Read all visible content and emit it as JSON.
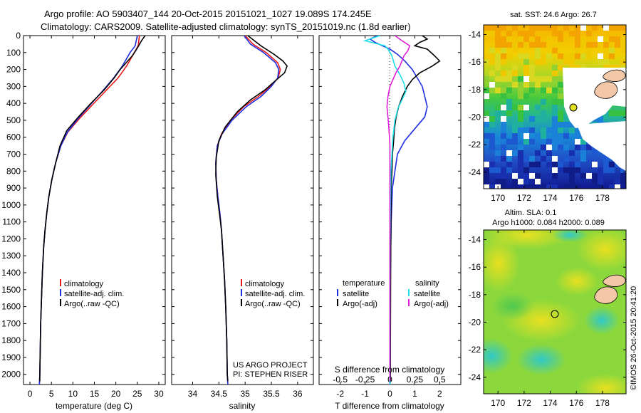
{
  "header": {
    "line1": "Argo profile: AO 5903407_144 20-Oct-2015 20151021_1027 19.089S 174.245E",
    "line2": "Climatology: CARS2009. Satellite-adjusted climatology: synTS_20151019.nc (1.8d earlier)"
  },
  "colors": {
    "climatology": "#e8191a",
    "satellite": "#1f2ee0",
    "argo": "#000000",
    "sal_satellite": "#1fe0e8",
    "sal_argo": "#e020d8"
  },
  "depth_axis": {
    "ticks": [
      0,
      100,
      200,
      300,
      400,
      500,
      600,
      700,
      800,
      900,
      1000,
      1100,
      1200,
      1300,
      1400,
      1500,
      1600,
      1700,
      1800,
      1900,
      2000
    ],
    "ylim": [
      0,
      2060
    ]
  },
  "chart_data": [
    {
      "type": "line",
      "panel": "temperature",
      "xlabel": "temperature (deg C)",
      "xlim": [
        -1.5,
        31.5
      ],
      "xticks": [
        0,
        5,
        10,
        15,
        20,
        25,
        30
      ],
      "legend": [
        "climatology",
        "satellite-adj. clim.",
        "Argo(..raw -QC)"
      ],
      "legend_position": "bottom-center",
      "series": [
        {
          "name": "climatology",
          "color": "climatology",
          "points": [
            [
              25.5,
              0
            ],
            [
              25.2,
              60
            ],
            [
              24.3,
              100
            ],
            [
              22.5,
              180
            ],
            [
              20.5,
              250
            ],
            [
              17.5,
              330
            ],
            [
              14.5,
              410
            ],
            [
              11.5,
              490
            ],
            [
              8.8,
              570
            ],
            [
              7.2,
              650
            ],
            [
              6.0,
              750
            ],
            [
              5.1,
              850
            ],
            [
              4.4,
              950
            ],
            [
              3.9,
              1050
            ],
            [
              3.5,
              1150
            ],
            [
              3.2,
              1250
            ],
            [
              2.9,
              1400
            ],
            [
              2.7,
              1550
            ],
            [
              2.5,
              1700
            ],
            [
              2.4,
              1850
            ],
            [
              2.3,
              2000
            ],
            [
              2.2,
              2060
            ]
          ]
        },
        {
          "name": "satellite-adj. clim.",
          "color": "satellite",
          "points": [
            [
              25.0,
              0
            ],
            [
              24.5,
              60
            ],
            [
              23.3,
              100
            ],
            [
              21.5,
              180
            ],
            [
              19.5,
              250
            ],
            [
              16.8,
              330
            ],
            [
              14.0,
              410
            ],
            [
              11.2,
              490
            ],
            [
              8.7,
              570
            ],
            [
              7.2,
              650
            ],
            [
              6.0,
              750
            ],
            [
              5.1,
              850
            ],
            [
              4.4,
              950
            ],
            [
              3.9,
              1050
            ],
            [
              3.5,
              1150
            ],
            [
              3.2,
              1250
            ],
            [
              2.9,
              1400
            ],
            [
              2.7,
              1550
            ],
            [
              2.5,
              1700
            ],
            [
              2.4,
              1850
            ],
            [
              2.3,
              2000
            ],
            [
              2.2,
              2060
            ]
          ]
        },
        {
          "name": "Argo(..raw -QC)",
          "color": "argo",
          "points": [
            [
              26.8,
              0
            ],
            [
              26.0,
              30
            ],
            [
              25.3,
              60
            ],
            [
              24.6,
              90
            ],
            [
              23.8,
              120
            ],
            [
              22.4,
              160
            ],
            [
              21.0,
              200
            ],
            [
              19.6,
              250
            ],
            [
              17.3,
              320
            ],
            [
              14.2,
              400
            ],
            [
              11.3,
              480
            ],
            [
              8.6,
              560
            ],
            [
              7.0,
              650
            ],
            [
              6.0,
              750
            ],
            [
              5.1,
              850
            ],
            [
              4.4,
              950
            ],
            [
              3.9,
              1050
            ],
            [
              3.5,
              1150
            ],
            [
              3.2,
              1250
            ],
            [
              2.9,
              1400
            ],
            [
              2.7,
              1550
            ],
            [
              2.5,
              1700
            ],
            [
              2.4,
              1850
            ],
            [
              2.3,
              2000
            ],
            [
              2.3,
              2040
            ]
          ]
        }
      ]
    },
    {
      "type": "line",
      "panel": "salinity",
      "xlabel": "salinity",
      "xlim": [
        33.6,
        36.3
      ],
      "xticks": [
        34,
        34.5,
        35,
        35.5,
        36
      ],
      "legend": [
        "climatology",
        "satellite-adj. clim.",
        "Argo(..raw -QC)"
      ],
      "legend_position": "bottom-right",
      "annotation": [
        "US ARGO PROJECT",
        "PI: STEPHEN RISER"
      ],
      "series": [
        {
          "name": "climatology",
          "color": "climatology",
          "points": [
            [
              35.0,
              0
            ],
            [
              35.15,
              50
            ],
            [
              35.4,
              100
            ],
            [
              35.62,
              160
            ],
            [
              35.67,
              200
            ],
            [
              35.63,
              250
            ],
            [
              35.48,
              300
            ],
            [
              35.25,
              360
            ],
            [
              34.97,
              420
            ],
            [
              34.72,
              500
            ],
            [
              34.55,
              580
            ],
            [
              34.47,
              650
            ],
            [
              34.44,
              750
            ],
            [
              34.45,
              850
            ],
            [
              34.48,
              950
            ],
            [
              34.52,
              1050
            ],
            [
              34.55,
              1150
            ],
            [
              34.58,
              1300
            ],
            [
              34.61,
              1450
            ],
            [
              34.63,
              1600
            ],
            [
              34.65,
              1800
            ],
            [
              34.66,
              2000
            ],
            [
              34.67,
              2060
            ]
          ]
        },
        {
          "name": "satellite-adj. clim.",
          "color": "satellite",
          "points": [
            [
              34.98,
              0
            ],
            [
              35.1,
              50
            ],
            [
              35.35,
              100
            ],
            [
              35.58,
              160
            ],
            [
              35.64,
              200
            ],
            [
              35.62,
              250
            ],
            [
              35.5,
              300
            ],
            [
              35.3,
              360
            ],
            [
              35.02,
              420
            ],
            [
              34.75,
              500
            ],
            [
              34.56,
              580
            ],
            [
              34.47,
              650
            ],
            [
              34.44,
              750
            ],
            [
              34.45,
              850
            ],
            [
              34.48,
              950
            ],
            [
              34.52,
              1050
            ],
            [
              34.55,
              1150
            ],
            [
              34.58,
              1300
            ],
            [
              34.61,
              1450
            ],
            [
              34.63,
              1600
            ],
            [
              34.65,
              1800
            ],
            [
              34.66,
              2000
            ],
            [
              34.67,
              2060
            ]
          ]
        },
        {
          "name": "Argo(..raw -QC)",
          "color": "argo",
          "points": [
            [
              35.05,
              0
            ],
            [
              35.3,
              60
            ],
            [
              35.55,
              110
            ],
            [
              35.72,
              150
            ],
            [
              35.8,
              180
            ],
            [
              35.75,
              220
            ],
            [
              35.6,
              260
            ],
            [
              35.38,
              320
            ],
            [
              35.1,
              380
            ],
            [
              34.85,
              450
            ],
            [
              34.62,
              540
            ],
            [
              34.5,
              620
            ],
            [
              34.45,
              720
            ],
            [
              34.44,
              820
            ],
            [
              34.47,
              950
            ],
            [
              34.51,
              1050
            ],
            [
              34.55,
              1150
            ],
            [
              34.58,
              1300
            ],
            [
              34.61,
              1450
            ],
            [
              34.63,
              1600
            ],
            [
              34.65,
              1800
            ],
            [
              34.66,
              2000
            ],
            [
              34.67,
              2040
            ]
          ]
        }
      ]
    },
    {
      "type": "line",
      "panel": "difference",
      "xlabel_top": "S difference from climatology",
      "xticks_top": [
        -0.5,
        -0.25,
        0,
        0.25,
        0.5
      ],
      "xlabel": "T difference from climatology",
      "xticks": [
        -2,
        -1,
        0,
        1,
        2
      ],
      "xlim_T": [
        -2.85,
        2.85
      ],
      "xlim_S": [
        -0.7125,
        0.7125
      ],
      "legend_left_title": "temperature",
      "legend_right_title": "salinity",
      "legend": [
        "satellite",
        "Argo(-adj)",
        "satellite",
        "Argo(-adj)"
      ],
      "legend_position": "bottom-center",
      "series": [
        {
          "name": "satellite",
          "group": "temperature",
          "color": "satellite",
          "axis": "T",
          "points": [
            [
              -0.5,
              0
            ],
            [
              -0.8,
              20
            ],
            [
              -0.6,
              40
            ],
            [
              -0.3,
              60
            ],
            [
              0.0,
              80
            ],
            [
              0.3,
              110
            ],
            [
              0.6,
              150
            ],
            [
              0.9,
              200
            ],
            [
              1.1,
              250
            ],
            [
              1.3,
              300
            ],
            [
              1.4,
              360
            ],
            [
              1.5,
              420
            ],
            [
              1.4,
              480
            ],
            [
              1.0,
              550
            ],
            [
              0.6,
              620
            ],
            [
              0.3,
              700
            ],
            [
              0.2,
              800
            ],
            [
              0.1,
              900
            ],
            [
              0.05,
              1100
            ],
            [
              0.02,
              1400
            ],
            [
              0.01,
              1800
            ],
            [
              0.0,
              2060
            ]
          ]
        },
        {
          "name": "Argo(-adj)",
          "group": "temperature",
          "color": "argo",
          "axis": "T",
          "points": [
            [
              1.3,
              0
            ],
            [
              1.5,
              20
            ],
            [
              1.2,
              40
            ],
            [
              1.0,
              60
            ],
            [
              1.5,
              80
            ],
            [
              1.8,
              120
            ],
            [
              2.0,
              150
            ],
            [
              1.7,
              180
            ],
            [
              1.2,
              220
            ],
            [
              0.9,
              260
            ],
            [
              0.7,
              300
            ],
            [
              0.5,
              360
            ],
            [
              0.35,
              420
            ],
            [
              0.25,
              480
            ],
            [
              0.18,
              550
            ],
            [
              0.15,
              620
            ],
            [
              0.1,
              700
            ],
            [
              0.08,
              800
            ],
            [
              0.05,
              900
            ],
            [
              0.04,
              1100
            ],
            [
              0.03,
              1400
            ],
            [
              0.02,
              1800
            ],
            [
              0.02,
              2040
            ]
          ]
        },
        {
          "name": "satellite",
          "group": "salinity",
          "color": "sal_satellite",
          "axis": "S",
          "points": [
            [
              -0.1,
              0
            ],
            [
              -0.25,
              30
            ],
            [
              -0.05,
              60
            ],
            [
              -0.02,
              80
            ],
            [
              0.02,
              120
            ],
            [
              0.05,
              180
            ],
            [
              0.1,
              230
            ],
            [
              0.14,
              280
            ],
            [
              0.16,
              330
            ],
            [
              0.12,
              380
            ],
            [
              0.08,
              430
            ],
            [
              0.05,
              500
            ],
            [
              0.03,
              600
            ],
            [
              0.02,
              700
            ],
            [
              0.01,
              800
            ],
            [
              0.005,
              1000
            ],
            [
              0.0,
              1300
            ],
            [
              0.0,
              1700
            ],
            [
              0.0,
              2060
            ]
          ]
        },
        {
          "name": "Argo(-adj)",
          "group": "salinity",
          "color": "sal_argo",
          "axis": "S",
          "points": [
            [
              0.05,
              0
            ],
            [
              0.12,
              30
            ],
            [
              0.2,
              60
            ],
            [
              0.18,
              90
            ],
            [
              0.14,
              120
            ],
            [
              0.12,
              150
            ],
            [
              0.1,
              180
            ],
            [
              0.06,
              220
            ],
            [
              0.03,
              260
            ],
            [
              0.0,
              300
            ],
            [
              -0.02,
              360
            ],
            [
              -0.03,
              420
            ],
            [
              -0.02,
              480
            ],
            [
              -0.01,
              550
            ],
            [
              0.0,
              650
            ],
            [
              0.0,
              800
            ],
            [
              0.0,
              1000
            ],
            [
              0.0,
              1300
            ],
            [
              0.0,
              1700
            ],
            [
              0.0,
              2040
            ]
          ]
        }
      ]
    },
    {
      "type": "heatmap",
      "panel": "sst-map",
      "title": "sat. SST: 24.6 Argo: 26.7",
      "xticks": [
        170,
        172,
        174,
        176,
        178
      ],
      "yticks": [
        -14,
        -16,
        -18,
        -20,
        -22,
        -24
      ],
      "xlim": [
        168.9,
        179.8
      ],
      "ylim": [
        -25.2,
        -13.3
      ],
      "float_position": [
        174.245,
        -19.089
      ]
    },
    {
      "type": "heatmap",
      "panel": "sla-map",
      "title": "Altim. SLA: 0.1",
      "subtitle": "Argo h1000: 0.084 h2000: 0.089",
      "xticks": [
        170,
        172,
        174,
        176,
        178
      ],
      "yticks": [
        -14,
        -16,
        -18,
        -20,
        -22,
        -24
      ],
      "xlim": [
        168.9,
        179.8
      ],
      "ylim": [
        -25.2,
        -13.3
      ],
      "float_position": [
        174.245,
        -19.089
      ]
    }
  ],
  "credit": "©IMOS 26-Oct-2015 20:41:20"
}
